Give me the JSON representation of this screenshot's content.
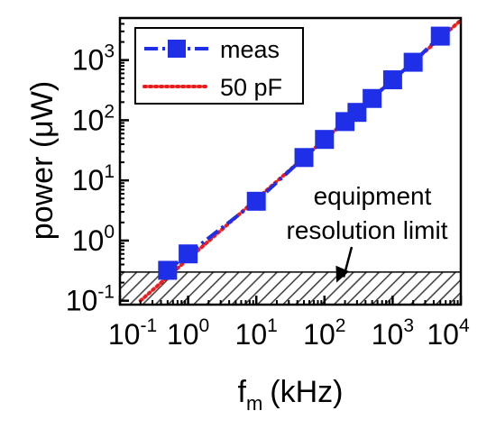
{
  "chart_data": {
    "type": "line",
    "xlabel": "f",
    "xlabel_sub": "m",
    "xlabel_unit": "(kHz)",
    "ylabel": "power (μW)",
    "x_scale": "log",
    "y_scale": "log",
    "xlim": [
      0.1,
      10000
    ],
    "ylim": [
      0.1,
      5000
    ],
    "grid": false,
    "legend_position": "top-left",
    "x_ticks": [
      {
        "base": "10",
        "exp": "-1",
        "value": 0.1
      },
      {
        "base": "10",
        "exp": "0",
        "value": 1
      },
      {
        "base": "10",
        "exp": "1",
        "value": 10
      },
      {
        "base": "10",
        "exp": "2",
        "value": 100
      },
      {
        "base": "10",
        "exp": "3",
        "value": 1000
      },
      {
        "base": "10",
        "exp": "4",
        "value": 10000
      }
    ],
    "y_ticks": [
      {
        "base": "10",
        "exp": "-1",
        "value": 0.1
      },
      {
        "base": "10",
        "exp": "0",
        "value": 1
      },
      {
        "base": "10",
        "exp": "1",
        "value": 10
      },
      {
        "base": "10",
        "exp": "2",
        "value": 100
      },
      {
        "base": "10",
        "exp": "3",
        "value": 1000
      }
    ],
    "series": [
      {
        "name": "meas",
        "style": "dash-dot line with square markers",
        "color": "#1f2fe8",
        "x": [
          0.5,
          1,
          10,
          50,
          100,
          200,
          300,
          500,
          1000,
          2000,
          5000
        ],
        "y": [
          0.32,
          0.6,
          4.5,
          24,
          48,
          95,
          135,
          230,
          470,
          920,
          2500
        ]
      },
      {
        "name": "50 pF",
        "style": "dotted line",
        "color": "#ee1c1c",
        "x": [
          0.2,
          10000
        ],
        "y": [
          0.1,
          4600
        ]
      }
    ],
    "shaded_region": {
      "y_min": 0.1,
      "y_max": 0.3,
      "pattern": "diagonal hatch",
      "color": "#555555"
    },
    "annotation": {
      "lines": [
        "equipment",
        "resolution limit"
      ],
      "arrow_target": {
        "x": 150,
        "y": 0.2
      }
    }
  }
}
